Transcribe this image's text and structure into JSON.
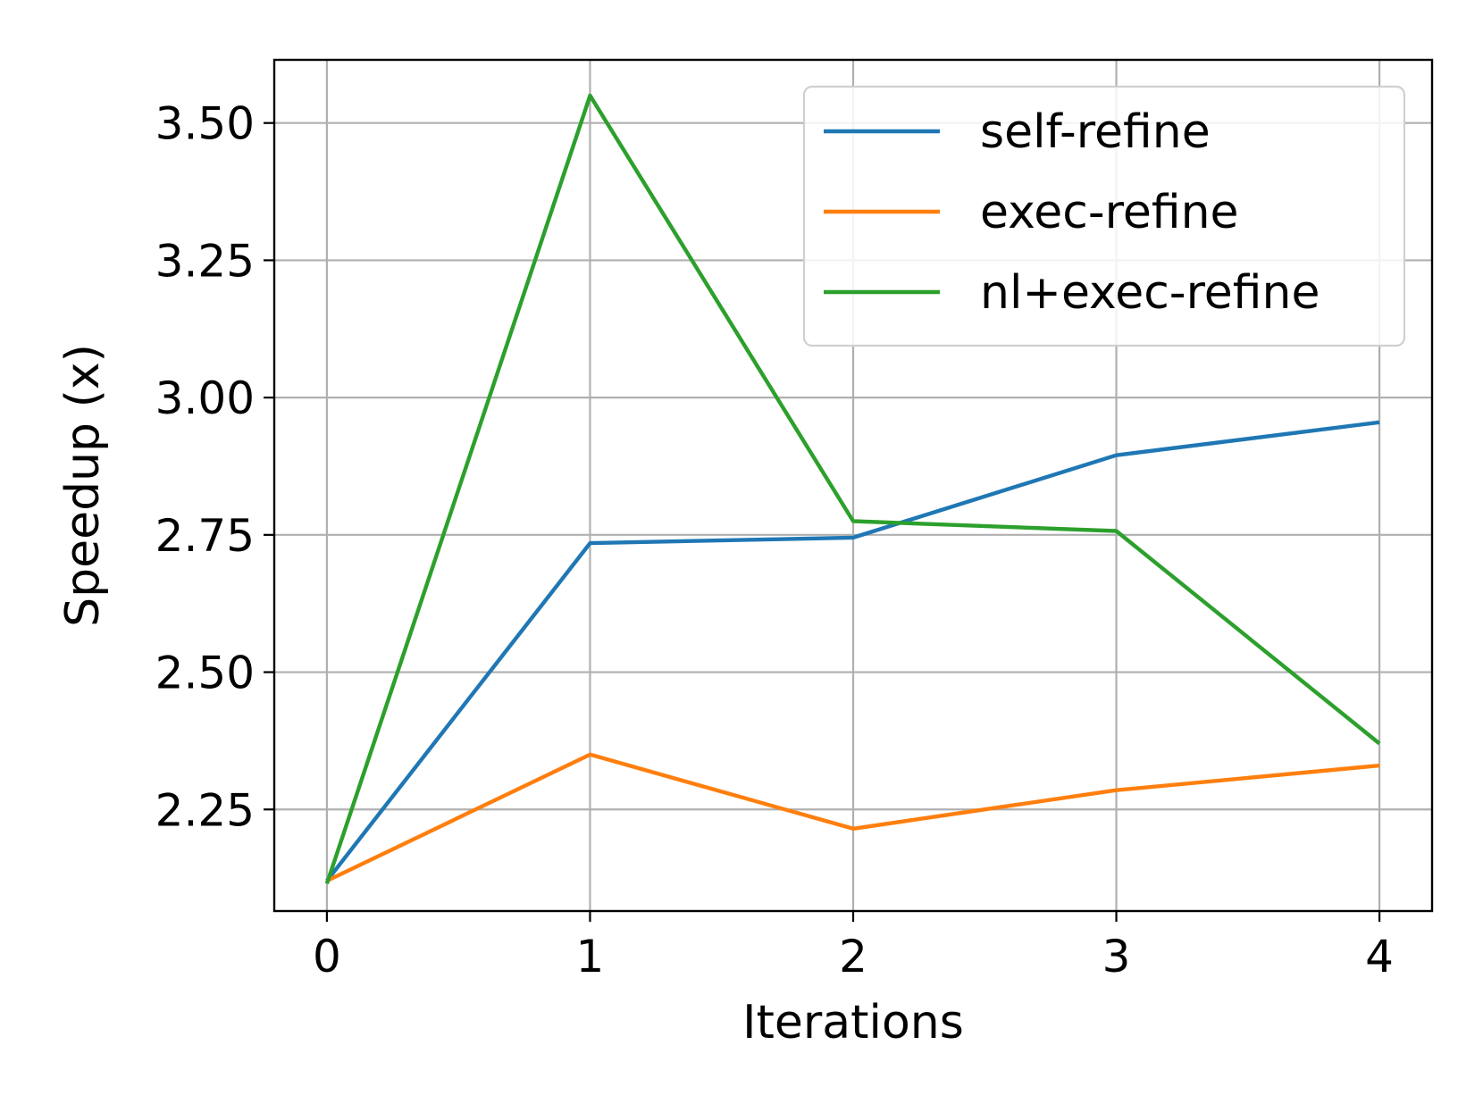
{
  "chart_data": {
    "type": "line",
    "title": "",
    "xlabel": "Iterations",
    "ylabel": "Speedup (x)",
    "x": [
      0,
      1,
      2,
      3,
      4
    ],
    "xticks": [
      "0",
      "1",
      "2",
      "3",
      "4"
    ],
    "yticks": [
      "2.25",
      "2.50",
      "2.75",
      "3.00",
      "3.25",
      "3.50"
    ],
    "xlim": [
      -0.2,
      4.2
    ],
    "ylim": [
      2.065,
      3.615
    ],
    "grid": true,
    "legend_position": "top-right",
    "series": [
      {
        "name": "self-refine",
        "color": "#1f77b4",
        "values": [
          2.12,
          2.735,
          2.745,
          2.895,
          2.955
        ]
      },
      {
        "name": "exec-refine",
        "color": "#ff7f0e",
        "values": [
          2.12,
          2.35,
          2.215,
          2.285,
          2.33
        ]
      },
      {
        "name": "nl+exec-refine",
        "color": "#2ca02c",
        "values": [
          2.115,
          3.55,
          2.775,
          2.757,
          2.37
        ]
      }
    ]
  }
}
